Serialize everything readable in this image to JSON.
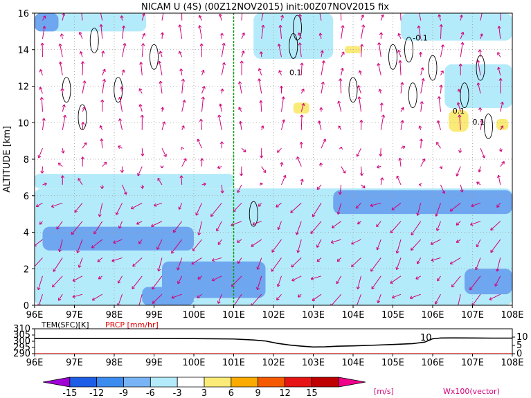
{
  "chart_data": [
    {
      "type": "heatmap",
      "title": "NICAM U (4S) (00Z12NOV2015) init:00Z07NOV2015 fix",
      "xlabel": "",
      "ylabel": "ALTITUDE [km]",
      "x_ticks": [
        "96E",
        "97E",
        "98E",
        "99E",
        "100E",
        "101E",
        "102E",
        "103E",
        "104E",
        "105E",
        "106E",
        "107E",
        "108E"
      ],
      "y_ticks": [
        "0",
        "2",
        "4",
        "6",
        "8",
        "10",
        "12",
        "14",
        "16"
      ],
      "xlim": [
        96,
        108
      ],
      "ylim": [
        0,
        16
      ],
      "grid": true,
      "marker_longitude": 101,
      "contour_labels": [
        {
          "text": "0.1",
          "lon": 102.4,
          "alt": 12.6
        },
        {
          "text": "-0.1",
          "lon": 105.5,
          "alt": 14.5
        },
        {
          "text": "0.1",
          "lon": 106.5,
          "alt": 10.5
        },
        {
          "text": "0.1",
          "lon": 107.0,
          "alt": 9.9
        }
      ],
      "fields": [
        {
          "level": -6,
          "lon0": 96.0,
          "lon1": 108.0,
          "alt0": 0.0,
          "alt1": 6.4
        },
        {
          "level": -6,
          "lon0": 96.0,
          "lon1": 101.0,
          "alt0": 6.4,
          "alt1": 7.2
        },
        {
          "level": -6,
          "lon0": 96.1,
          "lon1": 98.8,
          "alt0": 15.0,
          "alt1": 16.0
        },
        {
          "level": -6,
          "lon0": 101.5,
          "lon1": 103.5,
          "alt0": 13.5,
          "alt1": 16.0
        },
        {
          "level": -6,
          "lon0": 105.2,
          "lon1": 108.0,
          "alt0": 14.5,
          "alt1": 16.0
        },
        {
          "level": -6,
          "lon0": 106.3,
          "lon1": 108.0,
          "alt0": 10.8,
          "alt1": 13.2
        },
        {
          "level": -9,
          "lon0": 96.0,
          "lon1": 96.6,
          "alt0": 15.0,
          "alt1": 16.0
        },
        {
          "level": -9,
          "lon0": 96.2,
          "lon1": 100.0,
          "alt0": 3.0,
          "alt1": 4.3
        },
        {
          "level": -9,
          "lon0": 99.2,
          "lon1": 101.8,
          "alt0": 0.4,
          "alt1": 2.4
        },
        {
          "level": -9,
          "lon0": 103.5,
          "lon1": 108.0,
          "alt0": 5.0,
          "alt1": 6.3
        },
        {
          "level": -9,
          "lon0": 106.8,
          "lon1": 108.0,
          "alt0": 0.6,
          "alt1": 2.0
        },
        {
          "level": -9,
          "lon0": 98.7,
          "lon1": 100.0,
          "alt0": 0.0,
          "alt1": 1.0
        },
        {
          "level": 3,
          "lon0": 102.5,
          "lon1": 102.9,
          "alt0": 10.5,
          "alt1": 11.1
        },
        {
          "level": 3,
          "lon0": 106.4,
          "lon1": 106.9,
          "alt0": 9.5,
          "alt1": 10.7
        },
        {
          "level": 3,
          "lon0": 103.8,
          "lon1": 104.2,
          "alt0": 13.8,
          "alt1": 14.2
        },
        {
          "level": 3,
          "lon0": 107.6,
          "lon1": 107.9,
          "alt0": 9.6,
          "alt1": 10.2
        }
      ],
      "vectors_note": "Wx100(vector)"
    },
    {
      "type": "line",
      "xlabel": "",
      "ylabel_left": "TEM(SFC)[K]",
      "ylabel_right": "PRCP [mm/hr]",
      "x_ticks": [
        "96E",
        "97E",
        "98E",
        "99E",
        "100E",
        "101E",
        "102E",
        "103E",
        "104E",
        "105E",
        "106E",
        "107E",
        "108E"
      ],
      "y_ticks_left": [
        "290",
        "295",
        "300",
        "305",
        "310"
      ],
      "y_ticks_right": [
        "0",
        "5",
        "10"
      ],
      "ylim_left": [
        290,
        310
      ],
      "ylim_right": [
        0,
        15
      ],
      "annotation": "10",
      "series": [
        {
          "name": "TEM(SFC)[K]",
          "color": "#000000",
          "x": [
            96,
            96.5,
            97,
            97.5,
            98,
            98.5,
            99,
            99.5,
            100,
            100.5,
            101,
            101.5,
            101.8,
            102.1,
            102.4,
            102.7,
            103,
            103.3,
            103.6,
            104,
            104.5,
            105,
            105.5,
            105.8,
            106,
            106.2,
            106.5,
            107,
            107.5,
            108
          ],
          "y": [
            302.2,
            302.2,
            302.2,
            302.2,
            302.2,
            302.2,
            302.2,
            302.2,
            302.1,
            302.0,
            301.8,
            301.0,
            300.2,
            298.3,
            297.0,
            296.1,
            295.4,
            295.5,
            296.0,
            296.3,
            296.8,
            297.4,
            298.1,
            299.3,
            302.0,
            302.6,
            302.7,
            302.6,
            302.5,
            302.5
          ]
        },
        {
          "name": "PRCP [mm/hr]",
          "color": "#e00000",
          "x": [
            96,
            108
          ],
          "y": [
            0,
            0
          ]
        }
      ]
    }
  ],
  "colorbar": {
    "labels": [
      "-15",
      "-12",
      "-9",
      "-6",
      "-3",
      "3",
      "6",
      "9",
      "12",
      "15"
    ],
    "colors": [
      "#a000d6",
      "#1e5ee6",
      "#3c8cf0",
      "#78b4f5",
      "#b4ebfa",
      "#ffffff",
      "#faeb78",
      "#faaa00",
      "#f55a00",
      "#e61414",
      "#be0000",
      "#f0008c"
    ],
    "unit": "[m/s]"
  }
}
